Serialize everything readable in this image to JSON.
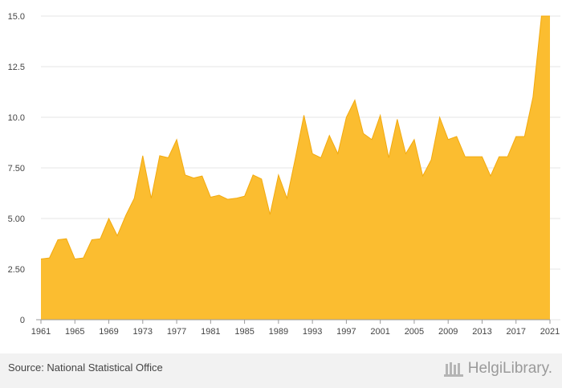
{
  "chart_data": {
    "type": "area",
    "title": "",
    "xlabel": "",
    "ylabel": "",
    "x": [
      1961,
      1962,
      1963,
      1964,
      1965,
      1966,
      1967,
      1968,
      1969,
      1970,
      1971,
      1972,
      1973,
      1974,
      1975,
      1976,
      1977,
      1978,
      1979,
      1980,
      1981,
      1982,
      1983,
      1984,
      1985,
      1986,
      1987,
      1988,
      1989,
      1990,
      1991,
      1992,
      1993,
      1994,
      1995,
      1996,
      1997,
      1998,
      1999,
      2000,
      2001,
      2002,
      2003,
      2004,
      2005,
      2006,
      2007,
      2008,
      2009,
      2010,
      2011,
      2012,
      2013,
      2014,
      2015,
      2016,
      2017,
      2018,
      2019,
      2020,
      2021
    ],
    "series": [
      {
        "values": [
          3.0,
          3.05,
          3.95,
          4.0,
          3.0,
          3.05,
          3.95,
          4.0,
          5.0,
          4.15,
          5.15,
          6.0,
          8.1,
          6.0,
          8.1,
          8.0,
          8.9,
          7.15,
          7.0,
          7.1,
          6.05,
          6.15,
          5.95,
          6.0,
          6.1,
          7.15,
          6.95,
          5.2,
          7.15,
          6.0,
          8.0,
          10.1,
          8.2,
          8.0,
          9.1,
          8.2,
          10.0,
          10.85,
          9.2,
          8.9,
          10.1,
          8.0,
          9.9,
          8.2,
          8.9,
          7.1,
          7.9,
          10.0,
          8.9,
          9.05,
          8.05,
          8.05,
          8.05,
          7.1,
          8.05,
          8.05,
          9.05,
          9.05,
          11.0,
          15.0,
          15.0
        ]
      }
    ],
    "xticks": [
      "1961",
      "1965",
      "1969",
      "1973",
      "1977",
      "1981",
      "1985",
      "1989",
      "1993",
      "1997",
      "2001",
      "2005",
      "2009",
      "2013",
      "2017",
      "2021"
    ],
    "yticks": [
      "0",
      "2.50",
      "5.00",
      "7.50",
      "10.0",
      "12.5",
      "15.0"
    ],
    "ylim": [
      0,
      15
    ],
    "xlim": [
      1961,
      2021
    ],
    "grid": true,
    "color": "#fbbd30",
    "line_color": "#f2aa10"
  },
  "footer": {
    "source": "Source: National Statistical Office",
    "brand": "HelgiLibrary."
  }
}
